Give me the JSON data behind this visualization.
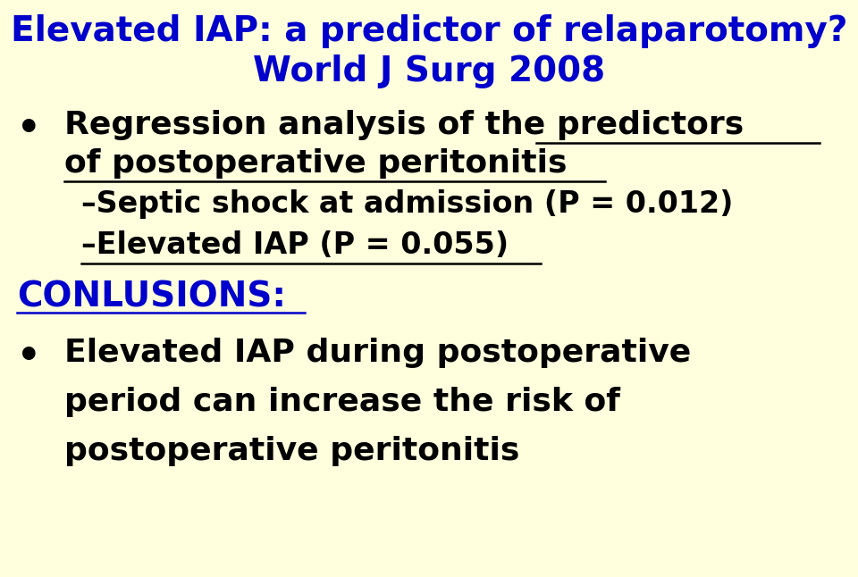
{
  "background_color": "#FFFFDD",
  "title_line1": "Elevated IAP: a predictor of relaparotomy?",
  "title_line2": "World J Surg 2008",
  "title_color": "#0000CC",
  "body_color": "#000000",
  "blue_color": "#0000CC",
  "line1a": "Regression analysis of the ",
  "line1b": "predictors",
  "line2": "of postoperative peritonitis",
  "sub_bullet_1": "–Septic shock at admission (P = 0.012)",
  "sub_bullet_2": "–Elevated IAP (P = 0.055)",
  "conclusions_label": "CONLUSIONS:",
  "bullet2_line1": "Elevated IAP during postoperative",
  "bullet2_line2": "period can increase the risk of",
  "bullet2_line3": "postoperative peritonitis",
  "font_size_title": 28,
  "font_size_body": 26,
  "font_size_sub": 24,
  "font_size_conclusions": 28
}
